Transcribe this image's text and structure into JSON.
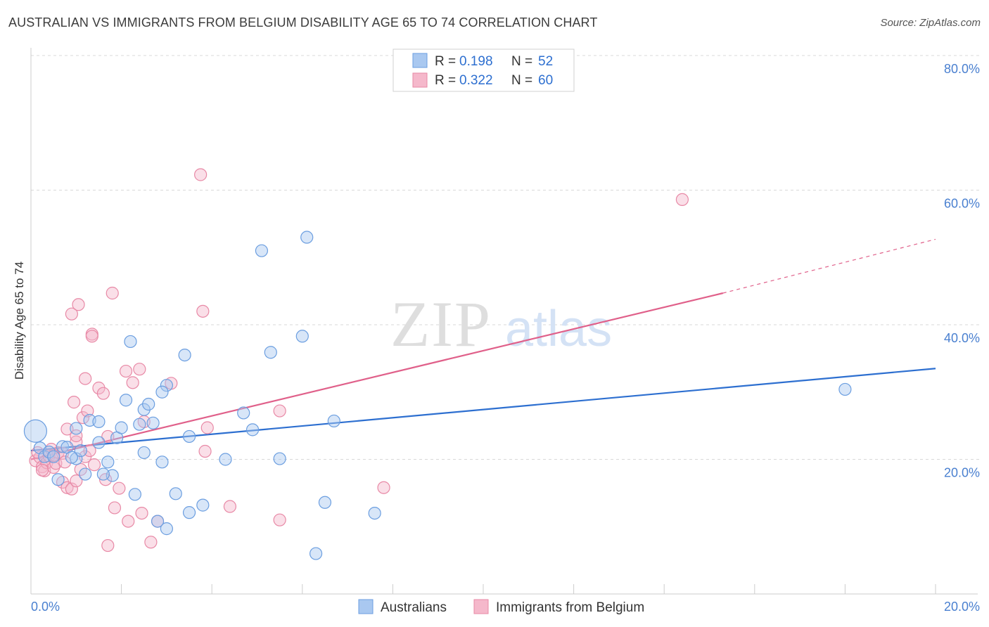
{
  "title": "AUSTRALIAN VS IMMIGRANTS FROM BELGIUM DISABILITY AGE 65 TO 74 CORRELATION CHART",
  "source": "Source: ZipAtlas.com",
  "colors": {
    "blue_fill": "#a9c8f0",
    "blue_stroke": "#6b9ee0",
    "blue_line": "#2d6fd0",
    "pink_fill": "#f5b8cb",
    "pink_stroke": "#e889a6",
    "pink_line": "#e0608a",
    "tick_text": "#4a80d0",
    "grid": "#d8d8d8"
  },
  "legend": {
    "rows": [
      {
        "r_label": "R =",
        "r_value": "0.198",
        "n_label": "N =",
        "n_value": "52"
      },
      {
        "r_label": "R =",
        "r_value": "0.322",
        "n_label": "N =",
        "n_value": "60"
      }
    ]
  },
  "watermark": {
    "zip": "ZIP",
    "atlas": "atlas"
  },
  "chart_data": {
    "type": "scatter",
    "title": "AUSTRALIAN VS IMMIGRANTS FROM BELGIUM DISABILITY AGE 65 TO 74 CORRELATION CHART",
    "xlabel": "",
    "ylabel": "Disability Age 65 to 74",
    "xlim": [
      0,
      20
    ],
    "ylim": [
      0,
      80
    ],
    "x_tick_labels": [
      "0.0%",
      "20.0%"
    ],
    "y_ticks": [
      20,
      40,
      60,
      80
    ],
    "y_tick_labels": [
      "20.0%",
      "40.0%",
      "60.0%",
      "80.0%"
    ],
    "grid": true,
    "legend_position": "top-center",
    "series": [
      {
        "name": "Australians",
        "r": 0.198,
        "n": 52,
        "trend": {
          "x0": 0,
          "y0": 21.3,
          "x1": 20,
          "y1": 33.5
        },
        "points": [
          [
            0.1,
            24.2
          ],
          [
            0.2,
            21.7
          ],
          [
            0.3,
            20.4
          ],
          [
            0.4,
            21.1
          ],
          [
            0.5,
            20.4
          ],
          [
            0.7,
            21.9
          ],
          [
            0.8,
            21.8
          ],
          [
            1.0,
            20.1
          ],
          [
            1.1,
            21.3
          ],
          [
            1.2,
            17.8
          ],
          [
            1.3,
            25.8
          ],
          [
            1.5,
            25.6
          ],
          [
            1.5,
            22.5
          ],
          [
            1.7,
            19.6
          ],
          [
            1.8,
            17.6
          ],
          [
            1.9,
            23.2
          ],
          [
            2.0,
            24.7
          ],
          [
            2.1,
            28.8
          ],
          [
            2.2,
            37.5
          ],
          [
            2.3,
            14.8
          ],
          [
            2.4,
            25.2
          ],
          [
            2.5,
            27.4
          ],
          [
            2.5,
            21.0
          ],
          [
            2.6,
            28.2
          ],
          [
            2.7,
            25.4
          ],
          [
            2.8,
            10.8
          ],
          [
            2.9,
            19.6
          ],
          [
            3.0,
            9.7
          ],
          [
            3.0,
            31.0
          ],
          [
            3.2,
            14.9
          ],
          [
            3.4,
            35.5
          ],
          [
            3.5,
            23.4
          ],
          [
            3.5,
            12.1
          ],
          [
            3.8,
            13.2
          ],
          [
            4.3,
            20.0
          ],
          [
            4.7,
            26.9
          ],
          [
            4.9,
            24.4
          ],
          [
            5.1,
            51.0
          ],
          [
            5.3,
            35.9
          ],
          [
            5.5,
            20.1
          ],
          [
            6.0,
            38.3
          ],
          [
            6.1,
            53.0
          ],
          [
            6.3,
            6.0
          ],
          [
            6.5,
            13.6
          ],
          [
            6.7,
            25.7
          ],
          [
            7.6,
            12.0
          ],
          [
            18.0,
            30.4
          ],
          [
            1.0,
            24.6
          ],
          [
            0.6,
            17.0
          ],
          [
            0.9,
            20.3
          ],
          [
            2.9,
            30.0
          ],
          [
            1.6,
            17.8
          ]
        ]
      },
      {
        "name": "Immigrants from Belgium",
        "r": 0.322,
        "n": 60,
        "trend": {
          "x0": 0,
          "y0": 20.0,
          "x1": 15.3,
          "y1": 44.7,
          "dash_x1": 20,
          "dash_y1": 52.7
        },
        "points": [
          [
            0.1,
            19.8
          ],
          [
            0.2,
            20.3
          ],
          [
            0.25,
            18.9
          ],
          [
            0.3,
            18.3
          ],
          [
            0.35,
            19.5
          ],
          [
            0.4,
            20.5
          ],
          [
            0.45,
            21.5
          ],
          [
            0.5,
            18.8
          ],
          [
            0.55,
            19.4
          ],
          [
            0.6,
            21.0
          ],
          [
            0.7,
            16.6
          ],
          [
            0.7,
            20.9
          ],
          [
            0.75,
            19.6
          ],
          [
            0.8,
            24.5
          ],
          [
            0.8,
            15.8
          ],
          [
            0.9,
            41.6
          ],
          [
            0.9,
            15.6
          ],
          [
            0.95,
            28.5
          ],
          [
            1.0,
            22.6
          ],
          [
            1.0,
            16.8
          ],
          [
            1.05,
            43.0
          ],
          [
            1.1,
            18.5
          ],
          [
            1.15,
            26.2
          ],
          [
            1.2,
            20.4
          ],
          [
            1.2,
            32.0
          ],
          [
            1.25,
            27.2
          ],
          [
            1.3,
            21.3
          ],
          [
            1.35,
            38.6
          ],
          [
            1.35,
            38.3
          ],
          [
            1.4,
            19.2
          ],
          [
            1.5,
            30.6
          ],
          [
            1.6,
            29.8
          ],
          [
            1.65,
            17.0
          ],
          [
            1.7,
            23.4
          ],
          [
            1.7,
            7.2
          ],
          [
            1.8,
            44.7
          ],
          [
            1.85,
            12.8
          ],
          [
            1.95,
            15.7
          ],
          [
            2.1,
            33.1
          ],
          [
            2.15,
            10.8
          ],
          [
            2.25,
            31.4
          ],
          [
            2.4,
            33.4
          ],
          [
            2.45,
            12.0
          ],
          [
            2.5,
            25.6
          ],
          [
            2.65,
            7.7
          ],
          [
            2.8,
            10.8
          ],
          [
            3.1,
            31.3
          ],
          [
            3.75,
            62.3
          ],
          [
            3.8,
            42.0
          ],
          [
            3.85,
            21.2
          ],
          [
            3.9,
            24.7
          ],
          [
            4.4,
            13.0
          ],
          [
            5.5,
            27.2
          ],
          [
            5.5,
            11.0
          ],
          [
            7.8,
            15.8
          ],
          [
            14.4,
            58.6
          ],
          [
            0.15,
            21.0
          ],
          [
            0.5,
            20.6
          ],
          [
            1.0,
            23.5
          ],
          [
            0.25,
            18.4
          ]
        ]
      }
    ]
  },
  "bottom_legend": {
    "items": [
      {
        "label": "Australians"
      },
      {
        "label": "Immigrants from Belgium"
      }
    ]
  }
}
